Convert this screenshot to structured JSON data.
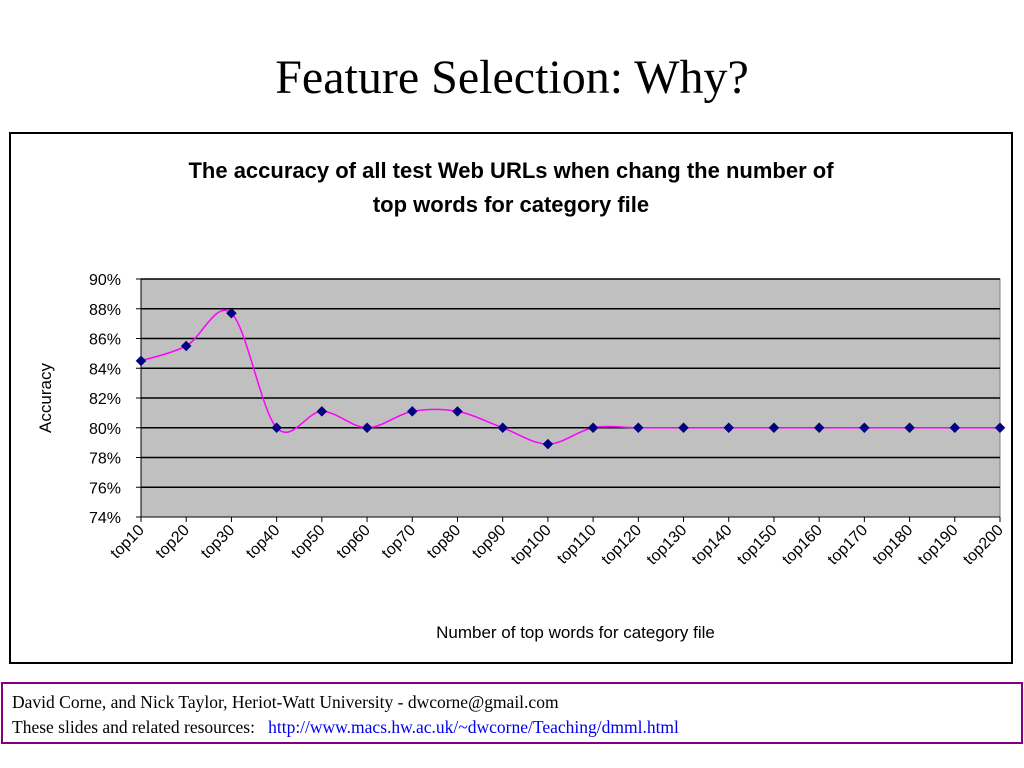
{
  "slide": {
    "title": "Feature Selection:  Why?"
  },
  "footer": {
    "line1": "David Corne, and Nick Taylor,  Heriot-Watt University  -  dwcorne@gmail.com",
    "line2_label": "These slides and related resources:",
    "line2_link": "http://www.macs.hw.ac.uk/~dwcorne/Teaching/dmml.html"
  },
  "colors": {
    "plot_area": "#c0c0c0",
    "line": "#ff00ff",
    "marker": "#000080",
    "link": "#0000ee",
    "footer_border": "#800080"
  },
  "chart_data": {
    "type": "line",
    "title_lines": [
      "The accuracy of all test Web URLs when chang the number of",
      "top words for category file"
    ],
    "xlabel": "Number of top words for category file",
    "ylabel": "Accuracy",
    "categories": [
      "top10",
      "top20",
      "top30",
      "top40",
      "top50",
      "top60",
      "top70",
      "top80",
      "top90",
      "top100",
      "top110",
      "top120",
      "top130",
      "top140",
      "top150",
      "top160",
      "top170",
      "top180",
      "top190",
      "top200"
    ],
    "values": [
      84.5,
      85.5,
      87.7,
      80.0,
      81.1,
      80.0,
      81.1,
      81.1,
      80.0,
      78.9,
      80.0,
      80.0,
      80.0,
      80.0,
      80.0,
      80.0,
      80.0,
      80.0,
      80.0,
      80.0
    ],
    "ylim": [
      74,
      90
    ],
    "yticks": [
      "74%",
      "76%",
      "78%",
      "80%",
      "82%",
      "84%",
      "86%",
      "88%",
      "90%"
    ],
    "grid": true,
    "smooth": true,
    "legend": "none"
  }
}
